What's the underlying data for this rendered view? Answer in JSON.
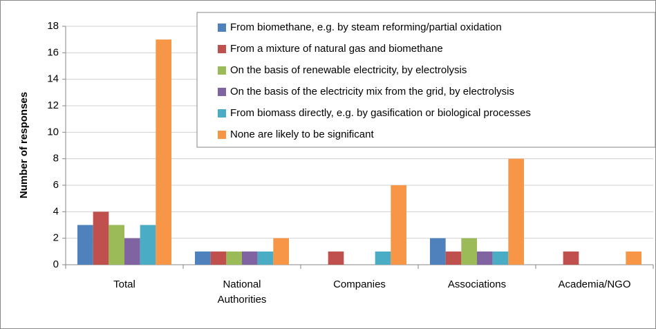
{
  "chart_data": {
    "type": "bar",
    "y_label": "Number of responses",
    "categories": [
      "Total",
      "National Authorities",
      "Companies",
      "Associations",
      "Academia/NGO"
    ],
    "series": [
      {
        "name": "From biomethane, e.g. by steam reforming/partial oxidation",
        "color": "#4f81bd",
        "values": [
          3,
          1,
          0,
          2,
          0
        ]
      },
      {
        "name": "From a mixture of natural gas and biomethane",
        "color": "#c0504d",
        "values": [
          4,
          1,
          1,
          1,
          1
        ]
      },
      {
        "name": "On the basis of renewable electricity, by electrolysis",
        "color": "#9bbb59",
        "values": [
          3,
          1,
          0,
          2,
          0
        ]
      },
      {
        "name": "On the basis of the electricity mix from the grid, by electrolysis",
        "color": "#8064a2",
        "values": [
          2,
          1,
          0,
          1,
          0
        ]
      },
      {
        "name": "From biomass directly, e.g. by gasification or biological processes",
        "color": "#4bacc6",
        "values": [
          3,
          1,
          1,
          1,
          0
        ]
      },
      {
        "name": "None are likely to be significant",
        "color": "#f79646",
        "values": [
          17,
          2,
          6,
          8,
          1
        ]
      }
    ],
    "ylim": [
      0,
      18
    ],
    "yticks": [
      0,
      2,
      4,
      6,
      8,
      10,
      12,
      14,
      16,
      18
    ],
    "grid": true,
    "legend": "top-right"
  }
}
